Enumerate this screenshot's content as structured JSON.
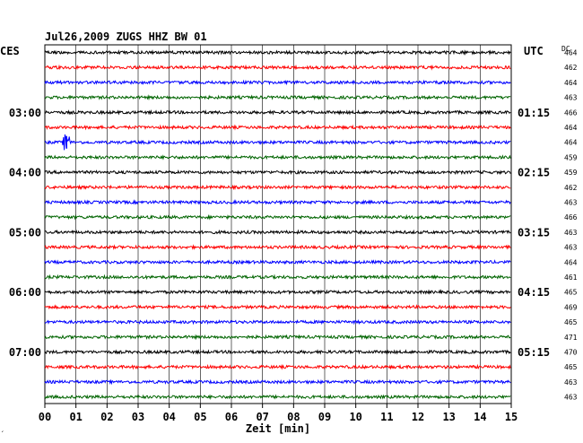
{
  "header": {
    "title": "Jul26,2009   ZUGS HHZ BW 01",
    "left_zone": "CES",
    "right_zone": "UTC",
    "dc_label": "DC",
    "footnote": "´"
  },
  "chart_data": {
    "type": "line",
    "subtype": "helicorder",
    "title": "Jul26,2009   ZUGS HHZ BW 01",
    "xlabel": "Zeit [min]",
    "xlim": [
      0,
      15
    ],
    "x_ticks": [
      "00",
      "01",
      "02",
      "03",
      "04",
      "05",
      "06",
      "07",
      "08",
      "09",
      "10",
      "11",
      "12",
      "13",
      "14",
      "15"
    ],
    "grid": "vertical",
    "trace_colors": [
      "#000000",
      "#ff0000",
      "#0000ff",
      "#006400"
    ],
    "n_traces": 24,
    "left_hour_labels": [
      {
        "trace": 4,
        "label": "03:00"
      },
      {
        "trace": 8,
        "label": "04:00"
      },
      {
        "trace": 12,
        "label": "05:00"
      },
      {
        "trace": 16,
        "label": "06:00"
      },
      {
        "trace": 20,
        "label": "07:00"
      }
    ],
    "right_hour_labels": [
      {
        "trace": 4,
        "label": "01:15"
      },
      {
        "trace": 8,
        "label": "02:15"
      },
      {
        "trace": 12,
        "label": "03:15"
      },
      {
        "trace": 16,
        "label": "04:15"
      },
      {
        "trace": 20,
        "label": "05:15"
      }
    ],
    "dc_offsets": [
      "464",
      "462",
      "464",
      "463",
      "466",
      "464",
      "464",
      "459",
      "459",
      "462",
      "463",
      "466",
      "463",
      "463",
      "464",
      "461",
      "465",
      "469",
      "465",
      "471",
      "470",
      "465",
      "463",
      "463"
    ],
    "events": [
      {
        "trace": 6,
        "minute": 0.7
      }
    ]
  }
}
